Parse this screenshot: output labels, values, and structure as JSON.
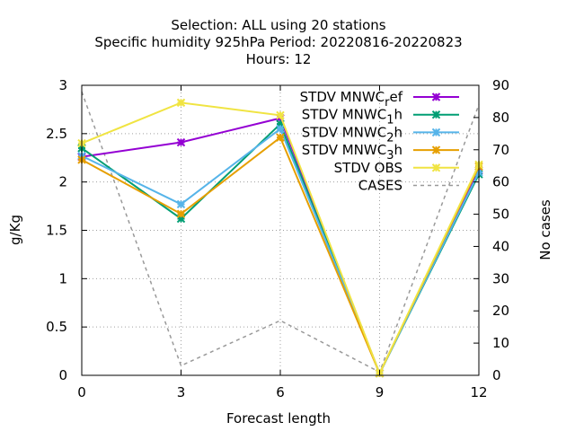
{
  "chart_data": {
    "type": "line",
    "title_lines": [
      "Selection: ALL using    20 stations",
      "Specific humidity 925hPa   Period: 20220816-20220823",
      "Hours:  12"
    ],
    "xlabel": "Forecast length",
    "ylabel": "g/Kg",
    "y2label": "No cases",
    "x": [
      0,
      3,
      6,
      9,
      12
    ],
    "xlim": [
      0,
      12
    ],
    "ylim": [
      0,
      3
    ],
    "y2lim": [
      0,
      90
    ],
    "xticks": [
      "0",
      "3",
      "6",
      "9",
      "12"
    ],
    "yticks": [
      "0",
      "0.5",
      "1",
      "1.5",
      "2",
      "2.5",
      "3"
    ],
    "y2ticks": [
      "0",
      "10",
      "20",
      "30",
      "40",
      "50",
      "60",
      "70",
      "80",
      "90"
    ],
    "grid": true,
    "legend_position": "top-right",
    "series": [
      {
        "name": "STDV MNWC",
        "sub": "r",
        "suffix": "ef",
        "color": "#9400d3",
        "marker": "x-star",
        "axis": "y",
        "values": [
          2.26,
          2.41,
          2.66,
          0.02,
          2.12
        ]
      },
      {
        "name": "STDV MNWC",
        "sub": "1",
        "suffix": "h",
        "color": "#009e73",
        "marker": "x-star",
        "axis": "y",
        "values": [
          2.35,
          1.62,
          2.6,
          0.02,
          2.08
        ]
      },
      {
        "name": "STDV MNWC",
        "sub": "2",
        "suffix": "h",
        "color": "#56b4e9",
        "marker": "x-star",
        "axis": "y",
        "values": [
          2.27,
          1.77,
          2.55,
          0.02,
          2.1
        ]
      },
      {
        "name": "STDV MNWC",
        "sub": "3",
        "suffix": "h",
        "color": "#e69f00",
        "marker": "x-star",
        "axis": "y",
        "values": [
          2.23,
          1.67,
          2.46,
          0.02,
          2.16
        ]
      },
      {
        "name": "STDV OBS",
        "sub": "",
        "suffix": "",
        "color": "#f0e442",
        "marker": "x-star",
        "axis": "y",
        "values": [
          2.4,
          2.82,
          2.69,
          0.02,
          2.18
        ]
      },
      {
        "name": "CASES",
        "sub": "",
        "suffix": "",
        "color": "#999999",
        "marker": "none",
        "dashed": true,
        "axis": "y2",
        "values": [
          88,
          3,
          17,
          1,
          84
        ]
      }
    ]
  }
}
